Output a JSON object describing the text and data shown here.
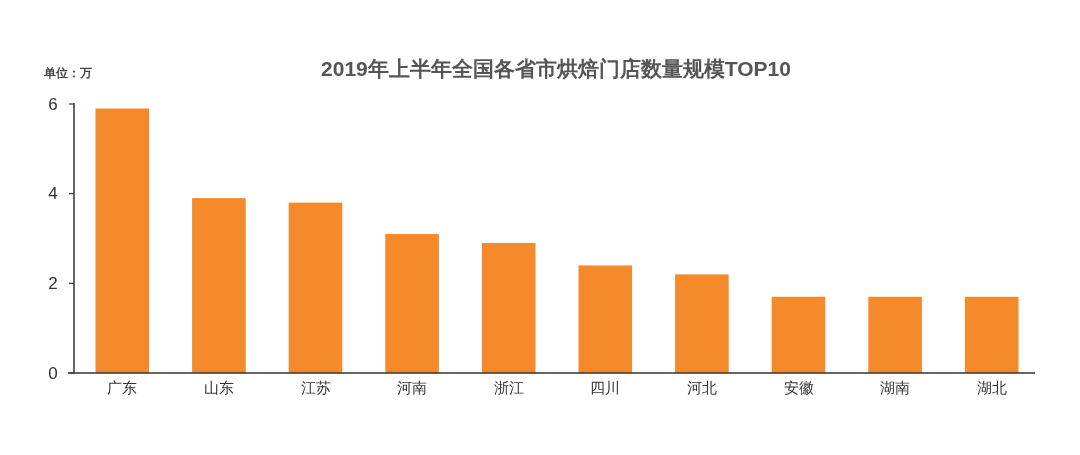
{
  "chart_data": {
    "type": "bar",
    "title": "2019年上半年全国各省市烘焙门店数量规模TOP10",
    "ylabel": "单位：万",
    "categories": [
      "广东",
      "山东",
      "江苏",
      "河南",
      "浙江",
      "四川",
      "河北",
      "安徽",
      "湖南",
      "湖北"
    ],
    "values": [
      5.9,
      3.9,
      3.8,
      3.1,
      2.9,
      2.4,
      2.2,
      1.7,
      1.7,
      1.7
    ],
    "color": "#f58a2c",
    "ylim": [
      0,
      6
    ],
    "yticks": [
      0,
      2,
      4,
      6
    ]
  }
}
